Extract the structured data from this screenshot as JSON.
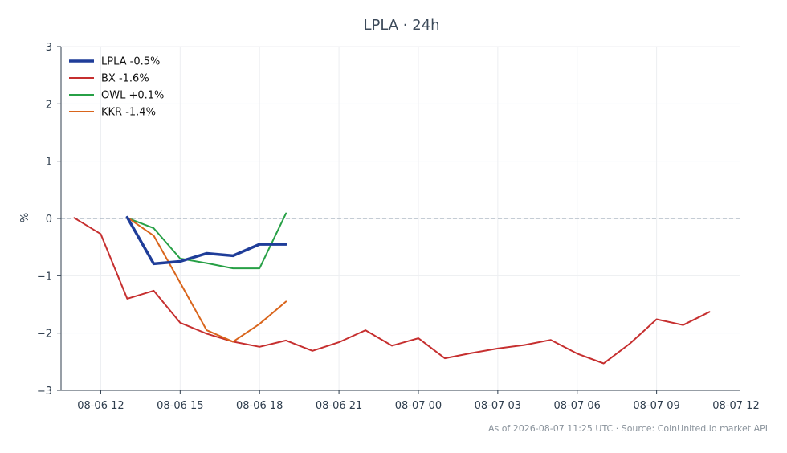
{
  "chart_data": {
    "type": "line",
    "title": "LPLA · 24h",
    "xlabel": "",
    "ylabel": "%",
    "ylim": [
      -3,
      3
    ],
    "yticks": [
      3,
      2,
      1,
      0,
      -1,
      -2,
      -3
    ],
    "ytick_labels": [
      "3",
      "2",
      "1",
      "0",
      "−1",
      "−2",
      "−3"
    ],
    "xlim": [
      "08-06 10:30",
      "08-07 12:10"
    ],
    "xticks": [
      "08-06 12",
      "08-06 15",
      "08-06 18",
      "08-06 21",
      "08-07 00",
      "08-07 03",
      "08-07 06",
      "08-07 09",
      "08-07 12"
    ],
    "grid": true,
    "zero_line": true,
    "legend_position": "top-left",
    "series": [
      {
        "name": "LPLA -0.5%",
        "color": "#1f3d99",
        "emphasis": true,
        "x": [
          "08-06 13",
          "08-06 14",
          "08-06 15",
          "08-06 16",
          "08-06 17",
          "08-06 18",
          "08-06 19"
        ],
        "values": [
          0.02,
          -0.79,
          -0.75,
          -0.61,
          -0.65,
          -0.45,
          -0.45
        ]
      },
      {
        "name": "BX -1.6%",
        "color": "#c62f2f",
        "emphasis": false,
        "x": [
          "08-06 11",
          "08-06 12",
          "08-06 13",
          "08-06 14",
          "08-06 15",
          "08-06 16",
          "08-06 17",
          "08-06 18",
          "08-06 19",
          "08-06 20",
          "08-06 21",
          "08-06 22",
          "08-06 23",
          "08-07 00",
          "08-07 01",
          "08-07 02",
          "08-07 03",
          "08-07 04",
          "08-07 05",
          "08-07 06",
          "08-07 07",
          "08-07 08",
          "08-07 09",
          "08-07 10",
          "08-07 11"
        ],
        "values": [
          0.01,
          -0.27,
          -1.4,
          -1.26,
          -1.82,
          -2.01,
          -2.15,
          -2.24,
          -2.13,
          -2.31,
          -2.16,
          -1.95,
          -2.22,
          -2.09,
          -2.44,
          -2.35,
          -2.27,
          -2.21,
          -2.12,
          -2.36,
          -2.53,
          -2.18,
          -1.76,
          -1.86,
          -1.63
        ]
      },
      {
        "name": "OWL +0.1%",
        "color": "#27a046",
        "emphasis": false,
        "x": [
          "08-06 13",
          "08-06 14",
          "08-06 15",
          "08-06 16",
          "08-06 17",
          "08-06 18",
          "08-06 19"
        ],
        "values": [
          0.01,
          -0.17,
          -0.7,
          -0.78,
          -0.87,
          -0.87,
          0.09
        ]
      },
      {
        "name": "KKR -1.4%",
        "color": "#d9651c",
        "emphasis": false,
        "x": [
          "08-06 13",
          "08-06 14",
          "08-06 15",
          "08-06 16",
          "08-06 17",
          "08-06 18",
          "08-06 19"
        ],
        "values": [
          0.02,
          -0.3,
          -1.12,
          -1.95,
          -2.15,
          -1.84,
          -1.45
        ]
      }
    ]
  },
  "footer": "As of 2026-08-07 11:25 UTC · Source: CoinUnited.io market API"
}
